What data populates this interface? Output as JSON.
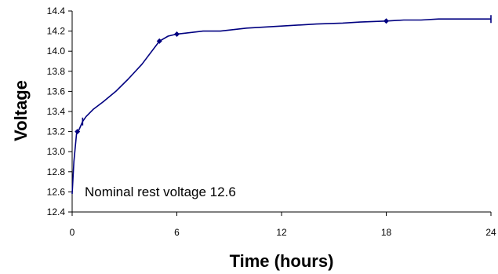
{
  "chart_data": {
    "type": "line",
    "title": "",
    "xlabel": "Time (hours)",
    "ylabel": "Voltage",
    "xlim": [
      0,
      24
    ],
    "ylim": [
      12.4,
      14.4
    ],
    "x_ticks": [
      0,
      6,
      12,
      18,
      24
    ],
    "y_ticks": [
      12.4,
      12.6,
      12.8,
      13.0,
      13.2,
      13.4,
      13.6,
      13.8,
      14.0,
      14.2,
      14.4
    ],
    "x_tick_labels": [
      "0",
      "6",
      "12",
      "18",
      "24"
    ],
    "y_tick_labels": [
      "12.4",
      "12.6",
      "12.8",
      "13.0",
      "13.2",
      "13.4",
      "13.6",
      "13.8",
      "14.0",
      "14.2",
      "14.4"
    ],
    "grid": false,
    "legend": "none",
    "line_color": "#000080",
    "annotation": "Nominal rest voltage 12.6",
    "series": [
      {
        "x": [
          0,
          0.1,
          0.25,
          0.4,
          0.6,
          0.8,
          1.2,
          1.8,
          2.5,
          3.2,
          4.0,
          5.0,
          5.5,
          6.0,
          6.5,
          7.5,
          8.5,
          10.0,
          12.0,
          14.0,
          15.5,
          16.5,
          18.0,
          19.0,
          20.0,
          21.0,
          22.0,
          24.0
        ],
        "y": [
          12.58,
          12.9,
          13.18,
          13.22,
          13.3,
          13.35,
          13.42,
          13.5,
          13.6,
          13.72,
          13.87,
          14.1,
          14.15,
          14.17,
          14.18,
          14.2,
          14.2,
          14.23,
          14.25,
          14.27,
          14.28,
          14.29,
          14.3,
          14.31,
          14.31,
          14.32,
          14.32,
          14.32
        ]
      }
    ],
    "markers": {
      "diamond": [
        [
          0.3,
          13.2
        ],
        [
          5.0,
          14.1
        ],
        [
          6.0,
          14.17
        ],
        [
          18.0,
          14.3
        ]
      ],
      "tick": [
        [
          0.6,
          13.3
        ],
        [
          24.0,
          14.32
        ]
      ]
    }
  }
}
